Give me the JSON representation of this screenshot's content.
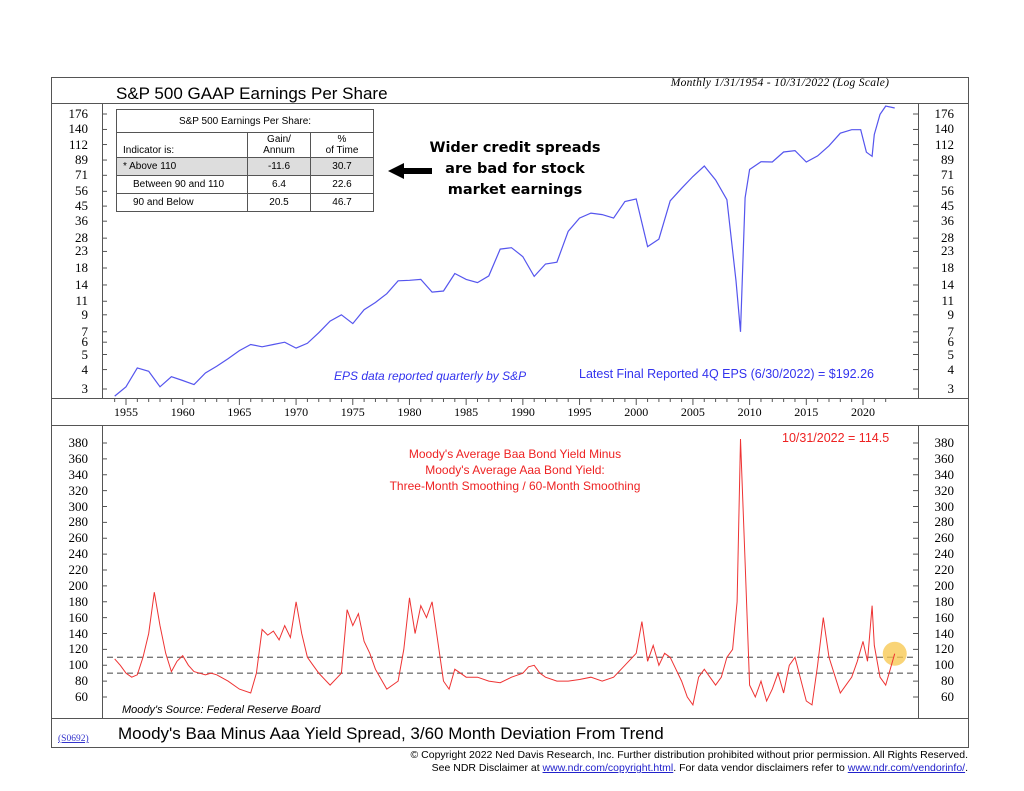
{
  "header": {
    "subtitle": "Monthly 1/31/1954 - 10/31/2022 (Log Scale)",
    "title": "S&P 500 GAAP Earnings Per Share"
  },
  "stats_table": {
    "caption": "S&P 500 Earnings Per Share:",
    "col_headers": [
      "Indicator is:",
      "Gain/\nAnnum",
      "%\nof Time"
    ],
    "col_header_lines": [
      [
        "Indicator is:"
      ],
      [
        "Gain/",
        "Annum"
      ],
      [
        "%",
        "of Time"
      ]
    ],
    "rows": [
      {
        "label": "* Above 110",
        "gain": "-11.6",
        "pct": "30.7",
        "highlight": true
      },
      {
        "label": "Between 90 and 110",
        "gain": "6.4",
        "pct": "22.6",
        "highlight": false
      },
      {
        "label": "90 and Below",
        "gain": "20.5",
        "pct": "46.7",
        "highlight": false
      }
    ]
  },
  "callout": {
    "lines": [
      "Wider credit spreads",
      "are bad for stock",
      "market earnings"
    ],
    "arrow_icon": "left-arrow-icon"
  },
  "upper_notes": {
    "eps_note": "EPS data reported quarterly by S&P",
    "latest_eps": "Latest Final Reported 4Q EPS (6/30/2022) = $192.26"
  },
  "lower_notes": {
    "latest_value": "10/31/2022 = 114.5",
    "series_desc": [
      "Moody's Average Baa Bond Yield Minus",
      "Moody's Average Aaa Bond Yield:",
      "Three-Month Smoothing / 60-Month Smoothing"
    ],
    "source": "Moody's Source: Federal Reserve Board"
  },
  "footer": {
    "code": "(S0692)",
    "title": "Moody's Baa Minus Aaa Yield Spread, 3/60 Month Deviation From Trend",
    "copyright_line1": "© Copyright 2022 Ned Davis Research, Inc.  Further distribution prohibited without prior permission.  All Rights Reserved.",
    "copyright_line2_pre": "See NDR Disclaimer at ",
    "link1": "www.ndr.com/copyright.html",
    "copyright_line2_mid": ". For data vendor disclaimers refer to ",
    "link2": "www.ndr.com/vendorinfo/",
    "copyright_line2_post": "."
  },
  "colors": {
    "eps_line": "#5555ee",
    "spread_line": "#ee3333",
    "threshold_line": "#777777",
    "highlight_row": "#dddddd",
    "marker": "#f7c64a",
    "frame": "#555555"
  },
  "chart_data": [
    {
      "type": "line",
      "title": "S&P 500 GAAP Earnings Per Share",
      "subtitle": "Monthly 1/31/1954 - 10/31/2022 (Log Scale)",
      "xlabel": "",
      "ylabel": "",
      "yscale": "log",
      "yticks": [
        3,
        4,
        5,
        6,
        7,
        9,
        11,
        14,
        18,
        23,
        28,
        36,
        45,
        56,
        71,
        89,
        112,
        140,
        176
      ],
      "xticks": [
        1955,
        1960,
        1965,
        1970,
        1975,
        1980,
        1985,
        1990,
        1995,
        2000,
        2005,
        2010,
        2015,
        2020
      ],
      "xlim": [
        1954,
        2022.8
      ],
      "ylim": [
        2.7,
        190
      ],
      "series": [
        {
          "name": "S&P 500 GAAP EPS",
          "x": [
            1954,
            1955,
            1956,
            1957,
            1958,
            1959,
            1960,
            1961,
            1962,
            1963,
            1964,
            1965,
            1966,
            1967,
            1968,
            1969,
            1970,
            1971,
            1972,
            1973,
            1974,
            1975,
            1976,
            1977,
            1978,
            1979,
            1980,
            1981,
            1982,
            1983,
            1984,
            1985,
            1986,
            1987,
            1988,
            1989,
            1990,
            1991,
            1992,
            1993,
            1994,
            1995,
            1996,
            1997,
            1998,
            1999,
            2000,
            2001,
            2002,
            2003,
            2004,
            2005,
            2006,
            2007,
            2008,
            2008.8,
            2009.2,
            2009.6,
            2010,
            2011,
            2012,
            2013,
            2014,
            2015,
            2016,
            2017,
            2018,
            2019,
            2019.8,
            2020.3,
            2020.8,
            2021,
            2021.5,
            2022,
            2022.8
          ],
          "values": [
            2.7,
            3.1,
            4.1,
            3.9,
            3.1,
            3.6,
            3.4,
            3.2,
            3.8,
            4.2,
            4.7,
            5.3,
            5.8,
            5.6,
            5.8,
            6.0,
            5.5,
            5.9,
            6.9,
            8.2,
            9.0,
            7.9,
            9.7,
            10.8,
            12.3,
            14.9,
            15.0,
            15.2,
            12.6,
            12.8,
            16.6,
            15.2,
            14.5,
            16.0,
            23.8,
            24.3,
            21.3,
            15.9,
            19.1,
            19.6,
            31.0,
            37.7,
            40.6,
            39.7,
            37.7,
            48.2,
            50.0,
            24.7,
            27.6,
            48.7,
            58.6,
            69.8,
            81.5,
            66.2,
            49.5,
            14.9,
            7.0,
            50.9,
            77.4,
            86.9,
            86.5,
            100.2,
            102.3,
            86.5,
            94.6,
            109.9,
            132.4,
            139.5,
            139.5,
            100.0,
            94.1,
            130.0,
            175.0,
            197.9,
            192.3
          ]
        }
      ]
    },
    {
      "type": "line",
      "title": "Moody's Baa Minus Aaa Yield Spread, 3/60 Month Deviation From Trend",
      "xlabel": "",
      "ylabel": "",
      "yticks": [
        60,
        80,
        100,
        120,
        140,
        160,
        180,
        200,
        220,
        240,
        260,
        280,
        300,
        320,
        340,
        360,
        380
      ],
      "xticks": [
        1955,
        1960,
        1965,
        1970,
        1975,
        1980,
        1985,
        1990,
        1995,
        2000,
        2005,
        2010,
        2015,
        2020
      ],
      "xlim": [
        1954,
        2022.8
      ],
      "ylim": [
        50,
        390
      ],
      "thresholds": [
        110,
        90
      ],
      "latest": {
        "date": "10/31/2022",
        "value": 114.5
      },
      "series": [
        {
          "name": "Baa-Aaa Spread 3/60 Month Deviation",
          "x": [
            1954,
            1954.5,
            1955,
            1955.5,
            1956,
            1956.5,
            1957,
            1957.5,
            1958,
            1958.5,
            1959,
            1959.5,
            1960,
            1960.5,
            1961,
            1961.5,
            1962,
            1962.5,
            1963,
            1964,
            1965,
            1966,
            1966.5,
            1967,
            1967.5,
            1968,
            1968.5,
            1969,
            1969.5,
            1970,
            1970.5,
            1971,
            1971.5,
            1972,
            1973,
            1974,
            1974.5,
            1975,
            1975.5,
            1976,
            1976.5,
            1977,
            1978,
            1979,
            1979.5,
            1980,
            1980.5,
            1981,
            1981.5,
            1982,
            1982.5,
            1983,
            1983.5,
            1984,
            1985,
            1986,
            1987,
            1988,
            1989,
            1990,
            1990.5,
            1991,
            1991.5,
            1992,
            1993,
            1994,
            1995,
            1996,
            1997,
            1998,
            1999,
            2000,
            2000.5,
            2001,
            2001.5,
            2002,
            2002.5,
            2003,
            2003.5,
            2004,
            2004.5,
            2005,
            2005.5,
            2006,
            2007,
            2007.5,
            2008,
            2008.5,
            2008.9,
            2009.2,
            2009.6,
            2010,
            2010.5,
            2011,
            2011.5,
            2012,
            2012.5,
            2013,
            2013.5,
            2014,
            2015,
            2015.5,
            2016,
            2016.5,
            2017,
            2018,
            2018.5,
            2019,
            2019.5,
            2020,
            2020.4,
            2020.8,
            2021,
            2021.5,
            2022,
            2022.8
          ],
          "values": [
            108,
            100,
            90,
            85,
            88,
            110,
            140,
            192,
            150,
            115,
            92,
            105,
            112,
            100,
            92,
            90,
            88,
            90,
            88,
            80,
            70,
            65,
            90,
            145,
            138,
            143,
            132,
            150,
            135,
            180,
            140,
            110,
            100,
            90,
            75,
            90,
            170,
            150,
            165,
            130,
            115,
            95,
            70,
            80,
            120,
            185,
            140,
            175,
            160,
            180,
            130,
            80,
            70,
            95,
            85,
            85,
            80,
            78,
            85,
            90,
            98,
            100,
            90,
            85,
            80,
            80,
            82,
            85,
            80,
            85,
            100,
            115,
            155,
            105,
            125,
            100,
            115,
            110,
            95,
            80,
            60,
            50,
            85,
            95,
            75,
            85,
            110,
            120,
            180,
            385,
            230,
            75,
            60,
            80,
            55,
            70,
            90,
            65,
            100,
            110,
            55,
            50,
            100,
            160,
            110,
            65,
            75,
            85,
            105,
            130,
            105,
            175,
            125,
            85,
            75,
            114.5
          ]
        }
      ]
    }
  ]
}
